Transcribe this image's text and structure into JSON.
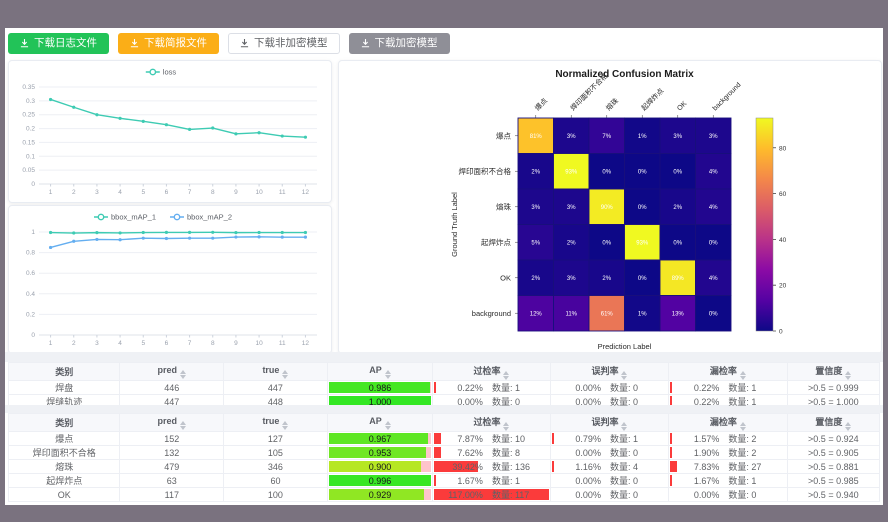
{
  "buttons": [
    {
      "label": "下载日志文件",
      "style": "green",
      "icon": "download-icon"
    },
    {
      "label": "下载简报文件",
      "style": "orange",
      "icon": "download-icon"
    },
    {
      "label": "下载非加密模型",
      "style": "white",
      "icon": "download-icon"
    },
    {
      "label": "下载加密模型",
      "style": "gray",
      "icon": "download-icon"
    }
  ],
  "colors": {
    "button_green": "#22c358",
    "button_orange": "#fbae17",
    "button_gray": "#8f8f97",
    "series_teal": "#3ecbb3",
    "series_blue": "#64aef0",
    "bar_red": "#fb3b3b",
    "bar_pink": "#ffc4cb",
    "frame_gray": "#7a727f"
  },
  "chart_data": [
    {
      "id": "loss",
      "type": "line",
      "legend_position": "top",
      "grid": true,
      "x": [
        1,
        2,
        3,
        4,
        5,
        6,
        7,
        8,
        9,
        10,
        11,
        12
      ],
      "series": [
        {
          "name": "loss",
          "color": "#3ecbb3",
          "values": [
            0.305,
            0.277,
            0.25,
            0.237,
            0.226,
            0.214,
            0.197,
            0.202,
            0.181,
            0.185,
            0.173,
            0.169
          ]
        }
      ],
      "ylim": [
        0,
        0.35
      ],
      "yticks": [
        0,
        0.05,
        0.1,
        0.15,
        0.2,
        0.25,
        0.3,
        0.35
      ]
    },
    {
      "id": "bbox-map",
      "type": "line",
      "legend_position": "top",
      "grid": true,
      "x": [
        1,
        2,
        3,
        4,
        5,
        6,
        7,
        8,
        9,
        10,
        11,
        12
      ],
      "series": [
        {
          "name": "bbox_mAP_1",
          "color": "#3ecbb3",
          "values": [
            0.995,
            0.99,
            0.994,
            0.991,
            0.995,
            0.996,
            0.996,
            0.997,
            0.994,
            0.995,
            0.995,
            0.995
          ]
        },
        {
          "name": "bbox_mAP_2",
          "color": "#64aef0",
          "values": [
            0.85,
            0.91,
            0.928,
            0.925,
            0.94,
            0.937,
            0.94,
            0.94,
            0.951,
            0.953,
            0.95,
            0.95
          ]
        }
      ],
      "ylim": [
        0,
        1
      ],
      "yticks": [
        0,
        0.2,
        0.4,
        0.6,
        0.8,
        1
      ]
    },
    {
      "id": "confusion",
      "type": "heatmap",
      "title": "Normalized Confusion Matrix",
      "xlabel": "Prediction Label",
      "ylabel": "Ground Truth Label",
      "labels": [
        "爆点",
        "焊印面积不合格",
        "熔珠",
        "起焊炸点",
        "OK",
        "background"
      ],
      "values_pct": [
        [
          81,
          3,
          7,
          1,
          3,
          3
        ],
        [
          2,
          93,
          0,
          0,
          0,
          4
        ],
        [
          3,
          3,
          90,
          0,
          2,
          4
        ],
        [
          5,
          2,
          0,
          93,
          0,
          0
        ],
        [
          2,
          3,
          2,
          0,
          89,
          4
        ],
        [
          12,
          11,
          61,
          1,
          13,
          0
        ]
      ],
      "vmax": 93,
      "colorbar_ticks": [
        0,
        20,
        40,
        60,
        80
      ],
      "colormap": "plasma"
    }
  ],
  "tables": {
    "headers": [
      {
        "label": "类别",
        "sortable": false
      },
      {
        "label": "pred",
        "sortable": true
      },
      {
        "label": "true",
        "sortable": true
      },
      {
        "label": "AP",
        "sortable": true
      },
      {
        "label": "过检率",
        "sortable": true
      },
      {
        "label": "误判率",
        "sortable": true
      },
      {
        "label": "漏检率",
        "sortable": true
      },
      {
        "label": "置信度",
        "sortable": true
      }
    ],
    "sort_icon": "sort-caret-icon",
    "groups": [
      {
        "rows": [
          {
            "cls": "焊盘",
            "pred": "446",
            "true": "447",
            "ap": 0.986,
            "ap_label": "0.986",
            "rates": [
              {
                "pct": "0.22%",
                "value": 0.22,
                "count": "数量: 1"
              },
              {
                "pct": "0.00%",
                "value": 0,
                "count": "数量: 0"
              },
              {
                "pct": "0.22%",
                "value": 0.22,
                "count": "数量: 1"
              }
            ],
            "conf": ">0.5 = 0.999"
          },
          {
            "cls": "焊缝轨迹",
            "pred": "447",
            "true": "448",
            "ap": 1.0,
            "ap_label": "1.000",
            "rates": [
              {
                "pct": "0.00%",
                "value": 0,
                "count": "数量: 0"
              },
              {
                "pct": "0.00%",
                "value": 0,
                "count": "数量: 0"
              },
              {
                "pct": "0.22%",
                "value": 0.22,
                "count": "数量: 1"
              }
            ],
            "conf": ">0.5 = 1.000"
          }
        ]
      },
      {
        "rows": [
          {
            "cls": "爆点",
            "pred": "152",
            "true": "127",
            "ap": 0.967,
            "ap_label": "0.967",
            "rates": [
              {
                "pct": "7.87%",
                "value": 7.87,
                "count": "数量: 10"
              },
              {
                "pct": "0.79%",
                "value": 0.79,
                "count": "数量: 1"
              },
              {
                "pct": "1.57%",
                "value": 1.57,
                "count": "数量: 2"
              }
            ],
            "conf": ">0.5 = 0.924"
          },
          {
            "cls": "焊印面积不合格",
            "pred": "132",
            "true": "105",
            "ap": 0.953,
            "ap_label": "0.953",
            "rates": [
              {
                "pct": "7.62%",
                "value": 7.62,
                "count": "数量: 8"
              },
              {
                "pct": "0.00%",
                "value": 0,
                "count": "数量: 0"
              },
              {
                "pct": "1.90%",
                "value": 1.9,
                "count": "数量: 2"
              }
            ],
            "conf": ">0.5 = 0.905"
          },
          {
            "cls": "熔珠",
            "pred": "479",
            "true": "346",
            "ap": 0.9,
            "ap_label": "0.900",
            "rates": [
              {
                "pct": "39.42%",
                "value": 39.42,
                "count": "数量: 136"
              },
              {
                "pct": "1.16%",
                "value": 1.16,
                "count": "数量: 4"
              },
              {
                "pct": "7.83%",
                "value": 7.83,
                "count": "数量: 27"
              }
            ],
            "conf": ">0.5 = 0.881"
          },
          {
            "cls": "起焊炸点",
            "pred": "63",
            "true": "60",
            "ap": 0.996,
            "ap_label": "0.996",
            "rates": [
              {
                "pct": "1.67%",
                "value": 1.67,
                "count": "数量: 1"
              },
              {
                "pct": "0.00%",
                "value": 0,
                "count": "数量: 0"
              },
              {
                "pct": "1.67%",
                "value": 1.67,
                "count": "数量: 1"
              }
            ],
            "conf": ">0.5 = 0.985"
          },
          {
            "cls": "OK",
            "pred": "117",
            "true": "100",
            "ap": 0.929,
            "ap_label": "0.929",
            "rates": [
              {
                "pct": "117.00%",
                "value": 117,
                "count": "数量: 117"
              },
              {
                "pct": "0.00%",
                "value": 0,
                "count": "数量: 0"
              },
              {
                "pct": "0.00%",
                "value": 0,
                "count": "数量: 0"
              }
            ],
            "conf": ">0.5 = 0.940"
          }
        ]
      }
    ]
  }
}
